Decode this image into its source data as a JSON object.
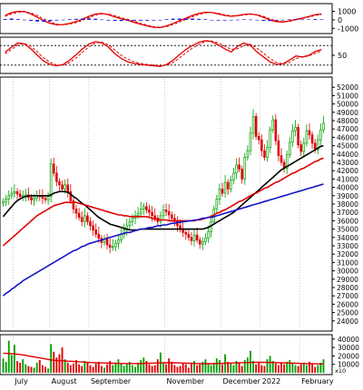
{
  "chart_data": [
    {
      "id": "macd",
      "type": "line",
      "title": "",
      "ylim": [
        -1400,
        1700
      ],
      "yticks": [
        "1000",
        "0",
        "-1000"
      ],
      "ytick_values": [
        1000,
        0,
        -1000
      ],
      "series": [
        {
          "color": "#e00000",
          "style": "solid",
          "values": [
            520,
            860,
            1000,
            980,
            700,
            300,
            -120,
            -420,
            -580,
            -560,
            -420,
            -200,
            100,
            420,
            700,
            760,
            600,
            350,
            120,
            -50,
            -300,
            -520,
            -720,
            -880,
            -900,
            -720,
            -420,
            -100,
            200,
            520,
            760,
            900,
            860,
            700,
            520,
            420,
            500,
            640,
            700,
            580,
            300,
            -20,
            -200,
            -260,
            -120,
            50,
            200,
            380,
            620,
            700
          ]
        },
        {
          "color": "#e00000",
          "style": "dashed",
          "values": [
            420,
            700,
            900,
            960,
            820,
            500,
            100,
            -260,
            -500,
            -580,
            -500,
            -320,
            -40,
            260,
            560,
            720,
            680,
            480,
            260,
            60,
            -180,
            -420,
            -620,
            -800,
            -880,
            -800,
            -560,
            -260,
            60,
            360,
            640,
            820,
            880,
            780,
            600,
            480,
            480,
            580,
            660,
            620,
            420,
            120,
            -120,
            -240,
            -180,
            0,
            160,
            320,
            520,
            640
          ]
        },
        {
          "type": "histogram",
          "color": "#1a1adc",
          "values": [
            100,
            160,
            100,
            20,
            -120,
            -200,
            -220,
            -160,
            -80,
            20,
            80,
            120,
            140,
            160,
            140,
            40,
            -80,
            -130,
            -140,
            -110,
            -120,
            -100,
            -100,
            -80,
            -20,
            80,
            140,
            160,
            140,
            160,
            120,
            80,
            -20,
            -80,
            -80,
            -60,
            20,
            60,
            40,
            -40,
            -120,
            -140,
            -80,
            -20,
            60,
            50,
            40,
            60,
            100,
            60
          ]
        }
      ]
    },
    {
      "id": "oscillator",
      "type": "line",
      "title": "",
      "ylim": [
        0,
        100
      ],
      "yticks": [
        "50"
      ],
      "ytick_values": [
        50
      ],
      "reference_lines": [
        80,
        20
      ],
      "series": [
        {
          "color": "#e00000",
          "style": "solid",
          "values": [
            60,
            75,
            88,
            85,
            70,
            50,
            32,
            22,
            18,
            22,
            35,
            52,
            70,
            85,
            92,
            88,
            75,
            55,
            40,
            30,
            25,
            22,
            20,
            18,
            16,
            22,
            35,
            52,
            68,
            80,
            90,
            95,
            92,
            82,
            70,
            60,
            78,
            88,
            80,
            60,
            45,
            30,
            22,
            24,
            35,
            48,
            45,
            50,
            62,
            68
          ]
        },
        {
          "color": "#e00000",
          "style": "dashed",
          "values": [
            55,
            68,
            82,
            86,
            78,
            60,
            42,
            28,
            20,
            20,
            28,
            42,
            60,
            76,
            88,
            90,
            82,
            66,
            50,
            38,
            30,
            25,
            22,
            20,
            18,
            20,
            28,
            42,
            58,
            72,
            84,
            92,
            94,
            88,
            78,
            68,
            70,
            80,
            84,
            72,
            56,
            40,
            28,
            24,
            28,
            40,
            45,
            48,
            56,
            64
          ]
        }
      ]
    },
    {
      "id": "price",
      "type": "candlestick",
      "title": "",
      "ylim": [
        23000,
        53000
      ],
      "yticks": [
        "52000",
        "51000",
        "50000",
        "49000",
        "48000",
        "47000",
        "46000",
        "45000",
        "44000",
        "43000",
        "42000",
        "41000",
        "40000",
        "39000",
        "38000",
        "37000",
        "36000",
        "35000",
        "34000",
        "33000",
        "32000",
        "31000",
        "30000",
        "29000",
        "28000",
        "27000",
        "26000",
        "25000",
        "24000"
      ],
      "ytick_values": [
        52000,
        51000,
        50000,
        49000,
        48000,
        47000,
        46000,
        45000,
        44000,
        43000,
        42000,
        41000,
        40000,
        39000,
        38000,
        37000,
        36000,
        35000,
        34000,
        33000,
        32000,
        31000,
        30000,
        29000,
        28000,
        27000,
        26000,
        25000,
        24000
      ],
      "close": [
        38300,
        38600,
        39000,
        39300,
        39500,
        39200,
        38900,
        39000,
        39100,
        38800,
        38500,
        38700,
        39000,
        38900,
        38700,
        38500,
        38900,
        42800,
        41700,
        40700,
        40300,
        39800,
        40300,
        39500,
        38400,
        37400,
        36900,
        36400,
        35900,
        36600,
        35900,
        35400,
        34900,
        34400,
        33900,
        33400,
        33800,
        33100,
        32800,
        32900,
        33300,
        33700,
        34400,
        34900,
        35400,
        35900,
        36300,
        36600,
        36900,
        37400,
        37700,
        37300,
        37000,
        36600,
        36300,
        35900,
        36600,
        37300,
        37100,
        36700,
        36300,
        35900,
        35400,
        35000,
        34600,
        34400,
        34000,
        33600,
        34300,
        33700,
        33200,
        33500,
        33900,
        34700,
        35900,
        37400,
        38600,
        39800,
        39300,
        40600,
        39800,
        40900,
        41700,
        42700,
        42200,
        41000,
        43600,
        44400,
        46500,
        48500,
        46100,
        45700,
        44400,
        43600,
        44800,
        46900,
        48100,
        45600,
        43800,
        43000,
        42300,
        43900,
        45400,
        46800,
        47200,
        45100,
        44300,
        45300,
        46800,
        46300,
        45300,
        44500,
        45700,
        46900,
        47700
      ],
      "series": [
        {
          "name": "",
          "color": "#000000",
          "values": [
            36500,
            36900,
            37300,
            37700,
            38100,
            38400,
            38600,
            38800,
            38900,
            39000,
            39000,
            39000,
            39000,
            39000,
            39000,
            39000,
            39000,
            39100,
            39300,
            39400,
            39500,
            39500,
            39500,
            39400,
            39200,
            38900,
            38700,
            38400,
            38100,
            37900,
            37600,
            37300,
            37000,
            36700,
            36400,
            36200,
            36000,
            35800,
            35600,
            35500,
            35400,
            35300,
            35200,
            35100,
            35000,
            34900,
            34900,
            34900,
            34900,
            35000,
            35000,
            35000,
            35000,
            35000,
            35000,
            35000,
            35000,
            35000,
            35000,
            35000,
            35000,
            35000,
            35000,
            35000,
            35000,
            35000,
            35000,
            35000,
            35000,
            35000,
            35000,
            35000,
            35100,
            35200,
            35400,
            35600,
            35800,
            36000,
            36200,
            36400,
            36600,
            36800,
            37000,
            37300,
            37600,
            37900,
            38200,
            38500,
            38800,
            39100,
            39400,
            39700,
            40000,
            40300,
            40600,
            40900,
            41200,
            41500,
            41800,
            42100,
            42300,
            42500,
            42700,
            42900,
            43100,
            43300,
            43500,
            43700,
            43900,
            44100,
            44300,
            44500,
            44700,
            44900,
            45000
          ]
        },
        {
          "name": "",
          "color": "#e00000",
          "values": [
            33000,
            33300,
            33600,
            33900,
            34200,
            34500,
            34800,
            35100,
            35400,
            35700,
            36000,
            36300,
            36600,
            36800,
            37000,
            37200,
            37400,
            37600,
            37800,
            37900,
            38000,
            38100,
            38200,
            38200,
            38200,
            38200,
            38200,
            38100,
            38000,
            37900,
            37800,
            37700,
            37600,
            37500,
            37400,
            37300,
            37200,
            37100,
            37000,
            36900,
            36800,
            36700,
            36700,
            36600,
            36600,
            36500,
            36500,
            36500,
            36500,
            36500,
            36500,
            36500,
            36400,
            36300,
            36200,
            36200,
            36100,
            36100,
            36100,
            36000,
            36000,
            36000,
            36000,
            36000,
            36000,
            36000,
            36000,
            36000,
            36000,
            36100,
            36100,
            36200,
            36300,
            36400,
            36500,
            36700,
            36900,
            37000,
            37200,
            37300,
            37500,
            37700,
            37900,
            38100,
            38300,
            38400,
            38600,
            38800,
            39000,
            39200,
            39300,
            39500,
            39700,
            39900,
            40000,
            40200,
            40400,
            40600,
            40700,
            40900,
            41100,
            41300,
            41500,
            41700,
            41800,
            42000,
            42200,
            42300,
            42500,
            42700,
            42900,
            43100,
            43200,
            43400,
            43500
          ]
        },
        {
          "name": "",
          "color": "#1414c8",
          "values": [
            27000,
            27300,
            27500,
            27800,
            28000,
            28300,
            28500,
            28800,
            29000,
            29200,
            29400,
            29600,
            29800,
            30000,
            30200,
            30400,
            30600,
            30800,
            31000,
            31200,
            31400,
            31600,
            31800,
            32000,
            32200,
            32400,
            32500,
            32700,
            32900,
            33000,
            33200,
            33300,
            33400,
            33500,
            33600,
            33700,
            33800,
            33900,
            34000,
            34100,
            34200,
            34300,
            34400,
            34500,
            34600,
            34600,
            34700,
            34800,
            34900,
            35000,
            35000,
            35100,
            35200,
            35200,
            35300,
            35400,
            35400,
            35500,
            35500,
            35600,
            35700,
            35700,
            35800,
            35800,
            35900,
            35900,
            36000,
            36000,
            36100,
            36100,
            36200,
            36300,
            36300,
            36400,
            36400,
            36500,
            36600,
            36700,
            36800,
            36900,
            37000,
            37100,
            37200,
            37300,
            37400,
            37500,
            37600,
            37700,
            37800,
            37900,
            38000,
            38100,
            38200,
            38300,
            38400,
            38500,
            38600,
            38700,
            38800,
            38900,
            39000,
            39100,
            39200,
            39300,
            39400,
            39500,
            39600,
            39700,
            39800,
            39900,
            40000,
            40100,
            40200,
            40300,
            40400
          ]
        }
      ]
    },
    {
      "id": "volume",
      "type": "bar",
      "title": "",
      "ylim": [
        0,
        43000
      ],
      "yticks": [
        "40000",
        "30000",
        "20000",
        "10000"
      ],
      "ytick_values": [
        40000,
        30000,
        20000,
        10000
      ],
      "unit_label": "x10",
      "values": [
        17000,
        13000,
        38000,
        21000,
        33000,
        14000,
        12000,
        16000,
        10000,
        8000,
        7000,
        6000,
        12000,
        15000,
        9000,
        7000,
        5000,
        34000,
        25000,
        18000,
        22000,
        30000,
        16000,
        12000,
        9000,
        11000,
        15000,
        10000,
        8000,
        14000,
        12000,
        9000,
        7000,
        11000,
        13000,
        8000,
        6000,
        10000,
        14000,
        9000,
        12000,
        16000,
        11000,
        8000,
        10000,
        13000,
        9000,
        7000,
        12000,
        15000,
        18000,
        14000,
        10000,
        8000,
        9000,
        16000,
        24000,
        12000,
        10000,
        17000,
        13000,
        9000,
        7000,
        8000,
        11000,
        10000,
        6000,
        12000,
        14000,
        9000,
        10000,
        13000,
        16000,
        11000,
        9000,
        12000,
        17000,
        15000,
        10000,
        22000,
        13000,
        11000,
        9000,
        14000,
        12000,
        8000,
        15000,
        18000,
        26000,
        14000,
        10000,
        12000,
        9000,
        8000,
        16000,
        20000,
        14000,
        11000,
        9000,
        12000,
        10000,
        13000,
        15000,
        11000,
        9000,
        8000,
        10000,
        12000,
        9000,
        13000,
        10000,
        7000,
        9000,
        12000,
        16000
      ],
      "ma": [
        23000,
        23000,
        22800,
        22600,
        22400,
        22000,
        21600,
        21200,
        20600,
        20000,
        19400,
        18800,
        18200,
        17600,
        17000,
        16400,
        15800,
        15200,
        14800,
        14600,
        14400,
        14200,
        14000,
        13800,
        13600,
        13400,
        13200,
        13000,
        12800,
        12600,
        12400,
        12200,
        12000,
        11900,
        11800,
        11700,
        11600,
        11500,
        11400,
        11300,
        11200,
        11100,
        11000,
        11000,
        11000,
        11000,
        11000,
        11000,
        11000,
        11000,
        11100,
        11200,
        11300,
        11400,
        11500,
        11600,
        11700,
        11800,
        11800,
        11800,
        11800,
        11800,
        11700,
        11600,
        11500,
        11400,
        11300,
        11200,
        11100,
        11000,
        10900,
        10800,
        10800,
        10800,
        10800,
        10900,
        11000,
        11100,
        11200,
        11300,
        11400,
        11500,
        11600,
        11700,
        11800,
        11900,
        12000,
        12100,
        12200,
        12300,
        12400,
        12400,
        12400,
        12400,
        12300,
        12200,
        12100,
        12000,
        11900,
        11800,
        11700,
        11600,
        11500,
        11400,
        11300,
        11200,
        11100,
        11000,
        10900,
        10800,
        10700,
        10600,
        10500,
        10400,
        10300
      ]
    }
  ],
  "months": [
    "July",
    "August",
    "September",
    "November",
    "December",
    "2022",
    "February"
  ],
  "month_index": [
    4,
    17,
    31,
    58,
    78,
    92,
    106
  ],
  "colors": {
    "up": "#00a000",
    "down": "#e00000",
    "grid": "#c0c0c0",
    "axis": "#000000"
  }
}
